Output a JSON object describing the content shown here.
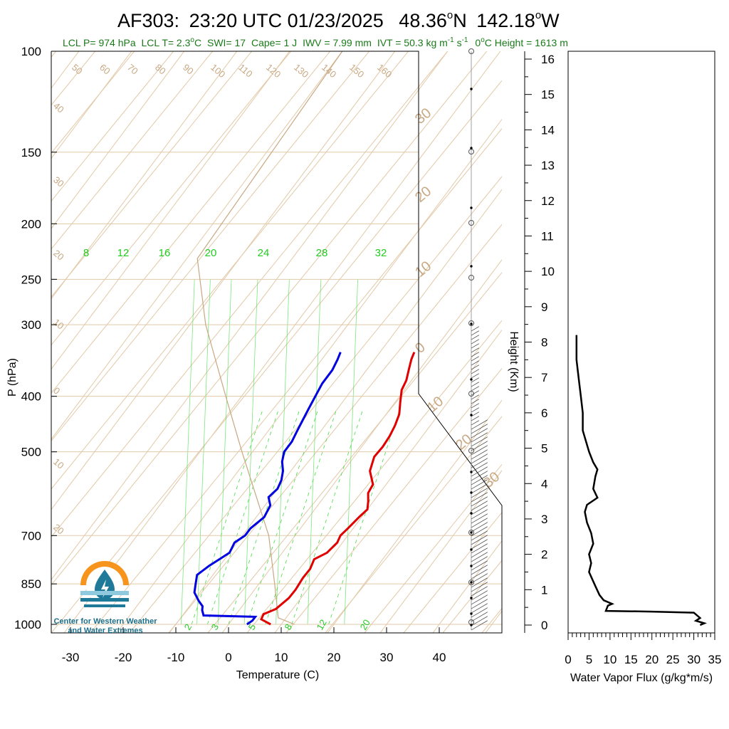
{
  "title": {
    "station": "AF303:",
    "time": "23:20 UTC 01/23/2025",
    "lat": "48.36",
    "lat_hemi": "N",
    "lon": "142.18",
    "lon_hemi": "W",
    "degree_symbol": "o"
  },
  "subtitle": {
    "lcl_p": "LCL P= 974 hPa",
    "lcl_t_prefix": "LCL T= 2.3",
    "lcl_t_unit": "C",
    "swi": "SWI= 17",
    "cape": "Cape= 1 J",
    "iwv": "IWV = 7.99 mm",
    "ivt_prefix": "IVT = 50.3 kg m",
    "ivt_exp1": "-1",
    "ivt_mid": " s",
    "ivt_exp2": "-1",
    "freezing": "0",
    "freezing_suffix": "C Height = 1613 m"
  },
  "logo": {
    "line1": "Center for Western Weather",
    "line2": "and Water Extremes",
    "colors": {
      "orange": "#f7941d",
      "blue": "#1f7a99",
      "light_blue": "#8fc9dd"
    }
  },
  "colors": {
    "temperature": "#e00000",
    "dewpoint": "#0000e0",
    "skew_lines": "#e2c9a8",
    "mixing_ratio": "#44dd44",
    "moist_adiabat": "#44dd44",
    "parcel": "#c8a882",
    "flux": "#000000"
  },
  "chart_data": [
    {
      "type": "line",
      "name": "skew-t",
      "xlabel": "Temperature (C)",
      "ylabel": "P (hPa)",
      "y_scale": "log",
      "pressure_ticks": [
        100,
        150,
        200,
        250,
        300,
        400,
        500,
        700,
        850,
        1000
      ],
      "temperature_ticks": [
        -30,
        -20,
        -10,
        0,
        10,
        20,
        30,
        40
      ],
      "right_axis_label": "Height (Km)",
      "height_ticks": [
        "0",
        "1",
        "2",
        "3",
        "4",
        "5",
        "6",
        "7",
        "8",
        "9",
        "10",
        "11",
        "12",
        "13",
        "14",
        "15",
        "16"
      ],
      "isotherm_labels_top": [
        "50",
        "60",
        "70",
        "80",
        "90",
        "100",
        "110",
        "120",
        "130",
        "140",
        "150",
        "160"
      ],
      "isotherm_labels_left": [
        "40",
        "30",
        "20",
        "10",
        "0",
        "10",
        "20"
      ],
      "theta_labels": [
        "30",
        "20",
        "10",
        "0",
        "10",
        "20",
        "30"
      ],
      "mixing_ratio_labels_top": [
        "8",
        "12",
        "16",
        "20",
        "24",
        "28",
        "32"
      ],
      "mixing_ratio_labels_bottom": [
        "2",
        "3",
        "5",
        "8",
        "12",
        "20"
      ],
      "temperature_profile": [
        {
          "p": 1000,
          "t": 8.0
        },
        {
          "p": 980,
          "t": 5.5
        },
        {
          "p": 960,
          "t": 5.2
        },
        {
          "p": 940,
          "t": 6.8
        },
        {
          "p": 900,
          "t": 7.7
        },
        {
          "p": 870,
          "t": 7.8
        },
        {
          "p": 830,
          "t": 7.5
        },
        {
          "p": 800,
          "t": 7.6
        },
        {
          "p": 770,
          "t": 7.0
        },
        {
          "p": 750,
          "t": 8.5
        },
        {
          "p": 720,
          "t": 9.0
        },
        {
          "p": 700,
          "t": 8.6
        },
        {
          "p": 680,
          "t": 9.0
        },
        {
          "p": 650,
          "t": 9.5
        },
        {
          "p": 630,
          "t": 10.0
        },
        {
          "p": 610,
          "t": 9.0
        },
        {
          "p": 590,
          "t": 7.8
        },
        {
          "p": 570,
          "t": 7.5
        },
        {
          "p": 540,
          "t": 5.0
        },
        {
          "p": 510,
          "t": 3.8
        },
        {
          "p": 490,
          "t": 4.0
        },
        {
          "p": 470,
          "t": 3.8
        },
        {
          "p": 450,
          "t": 3.3
        },
        {
          "p": 430,
          "t": 2.5
        },
        {
          "p": 410,
          "t": 1.0
        },
        {
          "p": 390,
          "t": -0.5
        },
        {
          "p": 375,
          "t": -1.0
        },
        {
          "p": 360,
          "t": -2.0
        },
        {
          "p": 345,
          "t": -3.0
        },
        {
          "p": 335,
          "t": -3.5
        }
      ],
      "dewpoint_profile": [
        {
          "p": 1000,
          "t": 3.5
        },
        {
          "p": 985,
          "t": 4.0
        },
        {
          "p": 970,
          "t": 4.0
        },
        {
          "p": 965,
          "t": -6.0
        },
        {
          "p": 955,
          "t": -6.5
        },
        {
          "p": 945,
          "t": -7.0
        },
        {
          "p": 930,
          "t": -7.5
        },
        {
          "p": 910,
          "t": -9.0
        },
        {
          "p": 880,
          "t": -11.0
        },
        {
          "p": 850,
          "t": -12.0
        },
        {
          "p": 820,
          "t": -13.0
        },
        {
          "p": 790,
          "t": -12.0
        },
        {
          "p": 770,
          "t": -11.0
        },
        {
          "p": 750,
          "t": -10.0
        },
        {
          "p": 720,
          "t": -10.5
        },
        {
          "p": 700,
          "t": -9.5
        },
        {
          "p": 680,
          "t": -9.5
        },
        {
          "p": 650,
          "t": -8.5
        },
        {
          "p": 620,
          "t": -9.0
        },
        {
          "p": 600,
          "t": -10.5
        },
        {
          "p": 580,
          "t": -10.0
        },
        {
          "p": 560,
          "t": -10.5
        },
        {
          "p": 540,
          "t": -11.5
        },
        {
          "p": 520,
          "t": -13.0
        },
        {
          "p": 500,
          "t": -14.0
        },
        {
          "p": 480,
          "t": -14.0
        },
        {
          "p": 460,
          "t": -14.5
        },
        {
          "p": 440,
          "t": -15.0
        },
        {
          "p": 420,
          "t": -15.5
        },
        {
          "p": 400,
          "t": -16.0
        },
        {
          "p": 380,
          "t": -16.5
        },
        {
          "p": 360,
          "t": -16.5
        },
        {
          "p": 345,
          "t": -17.0
        },
        {
          "p": 335,
          "t": -17.5
        }
      ],
      "parcel_profile": [
        {
          "p": 1000,
          "t": 12.5
        },
        {
          "p": 974,
          "t": 8.5
        },
        {
          "p": 850,
          "t": 3.0
        },
        {
          "p": 700,
          "t": -5.0
        },
        {
          "p": 500,
          "t": -22.0
        },
        {
          "p": 400,
          "t": -33.0
        },
        {
          "p": 300,
          "t": -47.0
        },
        {
          "p": 230,
          "t": -58.0
        },
        {
          "p": 100,
          "t": -60.0
        }
      ]
    },
    {
      "type": "line",
      "name": "water-vapor-flux",
      "xlabel": "Water Vapor Flux (g/kg*m/s)",
      "ylabel": "",
      "xlim": [
        0,
        35
      ],
      "x_ticks": [
        0,
        5,
        10,
        15,
        20,
        25,
        30,
        35
      ],
      "ylim_km": [
        -0.2,
        16.5
      ],
      "points": [
        {
          "x": 31.5,
          "h": 0.0
        },
        {
          "x": 32.5,
          "h": 0.05
        },
        {
          "x": 30.5,
          "h": 0.12
        },
        {
          "x": 31.5,
          "h": 0.2
        },
        {
          "x": 30.0,
          "h": 0.35
        },
        {
          "x": 20.0,
          "h": 0.38
        },
        {
          "x": 9.0,
          "h": 0.4
        },
        {
          "x": 9.5,
          "h": 0.55
        },
        {
          "x": 10.5,
          "h": 0.6
        },
        {
          "x": 8.5,
          "h": 0.7
        },
        {
          "x": 7.5,
          "h": 0.85
        },
        {
          "x": 6.5,
          "h": 1.1
        },
        {
          "x": 5.0,
          "h": 1.5
        },
        {
          "x": 5.5,
          "h": 1.75
        },
        {
          "x": 5.0,
          "h": 2.0
        },
        {
          "x": 6.0,
          "h": 2.3
        },
        {
          "x": 5.5,
          "h": 2.6
        },
        {
          "x": 4.5,
          "h": 2.9
        },
        {
          "x": 4.0,
          "h": 3.2
        },
        {
          "x": 4.5,
          "h": 3.4
        },
        {
          "x": 7.0,
          "h": 3.6
        },
        {
          "x": 6.0,
          "h": 3.85
        },
        {
          "x": 6.5,
          "h": 4.2
        },
        {
          "x": 7.0,
          "h": 4.4
        },
        {
          "x": 6.0,
          "h": 4.6
        },
        {
          "x": 5.0,
          "h": 4.9
        },
        {
          "x": 3.5,
          "h": 5.5
        },
        {
          "x": 3.5,
          "h": 6.0
        },
        {
          "x": 3.0,
          "h": 6.5
        },
        {
          "x": 2.5,
          "h": 7.0
        },
        {
          "x": 2.0,
          "h": 7.5
        },
        {
          "x": 2.0,
          "h": 8.2
        }
      ]
    }
  ]
}
